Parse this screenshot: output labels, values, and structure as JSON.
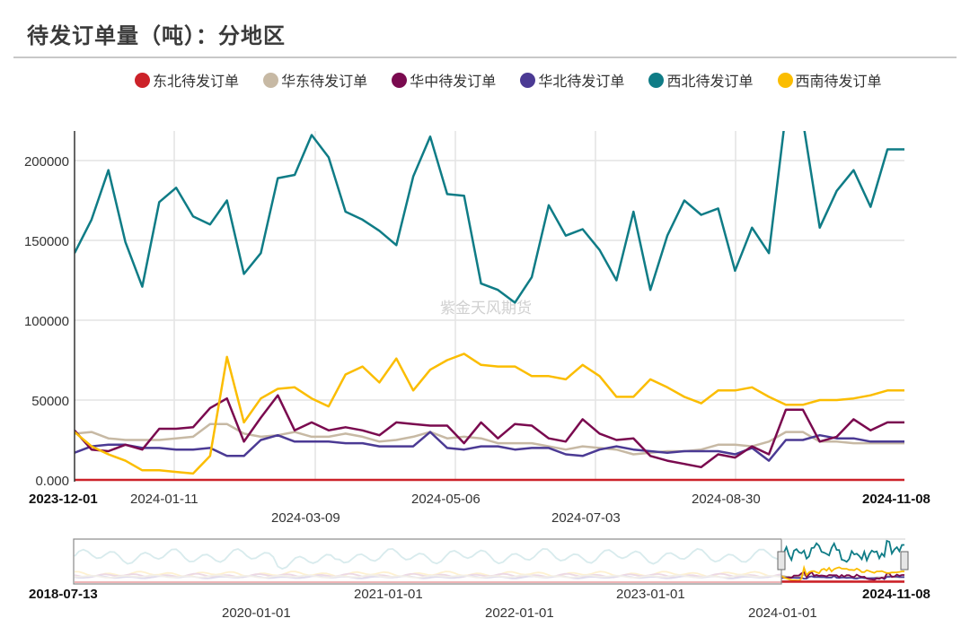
{
  "header": {
    "title": "待发订单量（吨）：分地区"
  },
  "watermark": "紫金天风期货",
  "legend": [
    {
      "label": "东北待发订单",
      "color": "#cc2229"
    },
    {
      "label": "华东待发订单",
      "color": "#c7b9a4"
    },
    {
      "label": "华中待发订单",
      "color": "#7a0a4f"
    },
    {
      "label": "华北待发订单",
      "color": "#4b3a94"
    },
    {
      "label": "西北待发订单",
      "color": "#0f7c86"
    },
    {
      "label": "西南待发订单",
      "color": "#fbbd00"
    }
  ],
  "navigator": {
    "start_label": "2018-07-13",
    "end_label": "2024-11-08",
    "ticks_row1": [
      "2021-01-01",
      "2023-01-01"
    ],
    "ticks_row2": [
      "2020-01-01",
      "2022-01-01",
      "2024-01-01"
    ]
  },
  "chart_data": {
    "type": "line",
    "title": "待发订单量（吨）：分地区",
    "xlabel": "",
    "ylabel": "",
    "ylim": [
      0,
      218000
    ],
    "grid": true,
    "legend_position": "top",
    "y_ticks": [
      "0.000",
      "50000",
      "100000",
      "150000",
      "200000"
    ],
    "y_tick_values": [
      0,
      50000,
      100000,
      150000,
      200000
    ],
    "x_start": "2023-12-01",
    "x_end": "2024-11-08",
    "x_tick_labels_row1": [
      "2024-01-11",
      "2024-05-06",
      "2024-08-30"
    ],
    "x_tick_labels_row2": [
      "2024-03-09",
      "2024-07-03"
    ],
    "x": [
      "2023-12-01",
      "2023-12-08",
      "2023-12-15",
      "2023-12-22",
      "2023-12-29",
      "2024-01-05",
      "2024-01-12",
      "2024-01-19",
      "2024-01-26",
      "2024-02-02",
      "2024-02-09",
      "2024-02-16",
      "2024-02-23",
      "2024-03-01",
      "2024-03-08",
      "2024-03-15",
      "2024-03-22",
      "2024-03-29",
      "2024-04-05",
      "2024-04-12",
      "2024-04-19",
      "2024-04-26",
      "2024-05-03",
      "2024-05-10",
      "2024-05-17",
      "2024-05-24",
      "2024-05-31",
      "2024-06-07",
      "2024-06-14",
      "2024-06-21",
      "2024-06-28",
      "2024-07-05",
      "2024-07-12",
      "2024-07-19",
      "2024-07-26",
      "2024-08-02",
      "2024-08-09",
      "2024-08-16",
      "2024-08-23",
      "2024-08-30",
      "2024-09-06",
      "2024-09-13",
      "2024-09-20",
      "2024-09-27",
      "2024-10-04",
      "2024-10-11",
      "2024-10-18",
      "2024-10-25",
      "2024-11-01",
      "2024-11-08"
    ],
    "series": [
      {
        "name": "东北待发订单",
        "color": "#cc2229",
        "values": [
          0,
          0,
          0,
          0,
          0,
          0,
          0,
          0,
          0,
          0,
          0,
          0,
          0,
          0,
          0,
          0,
          0,
          0,
          0,
          0,
          0,
          0,
          0,
          0,
          0,
          0,
          0,
          0,
          0,
          0,
          0,
          0,
          0,
          0,
          0,
          0,
          0,
          0,
          0,
          0,
          0,
          0,
          0,
          0,
          0,
          0,
          0,
          0,
          0,
          0
        ]
      },
      {
        "name": "华东待发订单",
        "color": "#c7b9a4",
        "values": [
          29000,
          30000,
          26000,
          25000,
          25000,
          25000,
          26000,
          27000,
          35000,
          35000,
          29000,
          27000,
          28000,
          30000,
          27000,
          27000,
          29000,
          27000,
          24000,
          25000,
          27000,
          30000,
          26000,
          27000,
          26000,
          23000,
          23000,
          23000,
          21000,
          19000,
          21000,
          20000,
          19000,
          16000,
          17000,
          18000,
          18000,
          19000,
          22000,
          22000,
          21000,
          24000,
          30000,
          30000,
          24000,
          24000,
          23000,
          23000,
          23000,
          23000
        ]
      },
      {
        "name": "华中待发订单",
        "color": "#7a0a4f",
        "values": [
          31000,
          19000,
          18000,
          22000,
          19000,
          32000,
          32000,
          33000,
          45000,
          51000,
          24000,
          39000,
          53000,
          31000,
          36000,
          31000,
          33000,
          31000,
          28000,
          36000,
          35000,
          34000,
          34000,
          23000,
          36000,
          26000,
          35000,
          34000,
          26000,
          24000,
          38000,
          29000,
          25000,
          26000,
          15000,
          12000,
          10000,
          8000,
          16000,
          14000,
          21000,
          16000,
          44000,
          44000,
          24000,
          27000,
          38000,
          31000,
          36000,
          36000
        ]
      },
      {
        "name": "华北待发订单",
        "color": "#4b3a94",
        "values": [
          17000,
          21000,
          22000,
          22000,
          20000,
          20000,
          19000,
          19000,
          20000,
          15000,
          15000,
          25000,
          28000,
          24000,
          24000,
          24000,
          23000,
          23000,
          21000,
          21000,
          21000,
          30000,
          20000,
          19000,
          21000,
          21000,
          19000,
          20000,
          20000,
          16000,
          15000,
          19000,
          21000,
          19000,
          18000,
          17000,
          18000,
          18000,
          18000,
          16000,
          20000,
          12000,
          25000,
          25000,
          28000,
          26000,
          26000,
          24000,
          24000,
          24000
        ]
      },
      {
        "name": "西北待发订单",
        "color": "#0f7c86",
        "values": [
          142000,
          163000,
          194000,
          149000,
          121000,
          174000,
          183000,
          165000,
          160000,
          175000,
          129000,
          142000,
          189000,
          191000,
          216000,
          202000,
          168000,
          163000,
          156000,
          147000,
          190000,
          215000,
          179000,
          178000,
          123000,
          119000,
          111000,
          127000,
          172000,
          153000,
          157000,
          144000,
          125000,
          168000,
          119000,
          153000,
          175000,
          166000,
          170000,
          131000,
          158000,
          142000,
          230000,
          225000,
          158000,
          181000,
          194000,
          171000,
          207000,
          207000
        ]
      },
      {
        "name": "西南待发订单",
        "color": "#fbbd00",
        "values": [
          30000,
          21000,
          16000,
          12000,
          6000,
          6000,
          5000,
          4000,
          15000,
          77000,
          36000,
          51000,
          57000,
          58000,
          51000,
          46000,
          66000,
          71000,
          61000,
          76000,
          56000,
          69000,
          75000,
          79000,
          72000,
          71000,
          71000,
          65000,
          65000,
          63000,
          72000,
          65000,
          52000,
          52000,
          63000,
          58000,
          52000,
          48000,
          56000,
          56000,
          58000,
          52000,
          47000,
          47000,
          50000,
          50000,
          51000,
          53000,
          56000,
          56000
        ]
      }
    ]
  }
}
